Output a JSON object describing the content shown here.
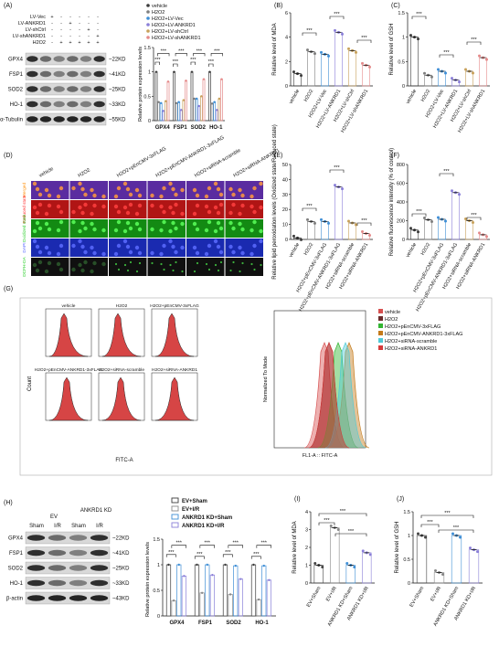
{
  "panels": {
    "A": {
      "letter": "(A)",
      "conditions": [
        "LV-Vec",
        "LV-ANKRD1",
        "LV-shCtrl",
        "LV-shANKRD1",
        "H2O2"
      ],
      "signs": [
        [
          "+",
          "-",
          "-",
          "-",
          "-",
          "-"
        ],
        [
          "-",
          "-",
          "+",
          "-",
          "-",
          "-"
        ],
        [
          "-",
          "-",
          "-",
          "-",
          "+",
          "-"
        ],
        [
          "-",
          "-",
          "-",
          "-",
          "-",
          "+"
        ],
        [
          "-",
          "+",
          "+",
          "+",
          "+",
          "+"
        ]
      ],
      "blot_labels": [
        "GPX4",
        "FSP1",
        "SOD2",
        "HO-1",
        "α-Tubulin"
      ],
      "kd_labels": [
        "~22KD",
        "~41KD",
        "~25KD",
        "~33KD",
        "~55KD"
      ],
      "legend": [
        "vehicle",
        "H2O2",
        "H2O2+LV-Vec",
        "H2O2+LV-ANKRD1",
        "H2O2+LV-shCtrl",
        "H2O2+LV-shANKRD1"
      ],
      "ylabel": "Relative protein expression levels",
      "categories": [
        "GPX4",
        "FSP1",
        "SOD2",
        "HO-1"
      ]
    },
    "B": {
      "letter": "(B)",
      "ylabel": "Relative level of MDA",
      "xlabels": [
        "vehicle",
        "H2O2",
        "H2O2+LV-Vec",
        "H2O2+LV-ANKRD1",
        "H2O2+LV-shCtrl",
        "H2O2+LV-shANKRD1"
      ]
    },
    "C": {
      "letter": "(C)",
      "ylabel": "Relative level of GSH",
      "xlabels": [
        "vehicle",
        "H2O2",
        "H2O2+LV-Vec",
        "H2O2+LV-ANKRD1",
        "H2O2+LV-shCtrl",
        "H2O2+LV-shANKRD1"
      ]
    },
    "D": {
      "letter": "(D)",
      "cols": [
        "vehicle",
        "H2O2",
        "H2O2+pEnCMV-3xFLAG",
        "H2O2+pEnCMV-ANKRD1-3xFLAG",
        "H2O2+siRNA-scramble",
        "H2O2+siRNA-ANKRD1"
      ],
      "rows": [
        "Merged",
        "Reduced state",
        "Oxidized state",
        "DAPI",
        "DCFH-DA"
      ]
    },
    "E": {
      "letter": "(E)",
      "ylabel": "Relative lipid peroxidation levels (Oxidized state/Reduced state)",
      "xlabels": [
        "vehicle",
        "H2O2",
        "H2O2+pEnCMV-3xFLAG",
        "H2O2+pEnCMV-ANKRD1-3xFLAG",
        "H2O2+siRNA-scramble",
        "H2O2+siRNA-ANKRD1"
      ]
    },
    "F": {
      "letter": "(F)",
      "ylabel": "Relative fluorescence intensity (% of control)",
      "xlabels": [
        "vehicle",
        "H2O2",
        "H2O2+pEnCMV-3xFLAG",
        "H2O2+pEnCMV-ANKRD1-3xFLAG",
        "H2O2+siRNA-scramble",
        "H2O2+siRNA-ANKRD1"
      ]
    },
    "G": {
      "letter": "(G)",
      "hist_titles": [
        "vehicle",
        "H2O2",
        "H2O2+pEnCMV-3xFLAG",
        "H2O2+pEnCMV-ANKRD1-3xFLAG",
        "H2O2+siRNA-scramble",
        "H2O2+siRNA-ANKRD1"
      ],
      "ylabel": "Count",
      "xlabel": "FITC-A",
      "overlay_ylabel": "Normalized To Mode",
      "overlay_xlabel": "FL1-A :: FITC-A",
      "legend": [
        "vehicle",
        "H2O2",
        "H2O2+pEnCMV-3xFLAG",
        "H2O2+pEnCMV-ANKRD1-3xFLAG",
        "H2O2+siRNA-scramble",
        "H2O2+siRNA-ANKRD1"
      ]
    },
    "H": {
      "letter": "(H)",
      "groups": [
        "EV",
        "ANKRD1 KD"
      ],
      "sub": [
        "Sham",
        "I/R",
        "Sham",
        "I/R"
      ],
      "blot_labels": [
        "GPX4",
        "FSP1",
        "SOD2",
        "HO-1",
        "β-actin"
      ],
      "kd_labels": [
        "~22KD",
        "~41KD",
        "~25KD",
        "~33KD",
        "~43KD"
      ],
      "legend": [
        "EV+Sham",
        "EV+I/R",
        "ANKRD1 KD+Sham",
        "ANKRD1 KD+I/R"
      ],
      "ylabel": "Relative protein expression levels",
      "categories": [
        "GPX4",
        "FSP1",
        "SOD2",
        "HO-1"
      ]
    },
    "I": {
      "letter": "(I)",
      "ylabel": "Relative level of MDA",
      "xlabels": [
        "EV+Sham",
        "EV+I/R",
        "ANKRD1 KD+Sham",
        "ANKRD1 KD+I/R"
      ]
    },
    "J": {
      "letter": "(J)",
      "ylabel": "Relative level of GSH",
      "xlabels": [
        "EV+Sham",
        "EV+I/R",
        "ANKRD1 KD+Sham",
        "ANKRD1 KD+I/R"
      ]
    },
    "sig": "***"
  },
  "colors": {
    "c_vehicle": "#3b3b3b",
    "c_h2o2": "#7f7f7f",
    "c_vec": "#3f8fd6",
    "c_ank": "#8a7fd8",
    "c_shctrl": "#c8a15a",
    "c_shank": "#e58a8a"
  },
  "chart_data": [
    {
      "panel": "A",
      "type": "bar",
      "categories": [
        "GPX4",
        "FSP1",
        "SOD2",
        "HO-1"
      ],
      "ylim": [
        0,
        1.5
      ],
      "series": [
        {
          "name": "vehicle",
          "values": [
            1.0,
            1.0,
            1.0,
            1.0
          ]
        },
        {
          "name": "H2O2",
          "values": [
            0.38,
            0.36,
            0.45,
            0.35
          ]
        },
        {
          "name": "H2O2+LV-Vec",
          "values": [
            0.36,
            0.38,
            0.45,
            0.38
          ]
        },
        {
          "name": "H2O2+LV-ANKRD1",
          "values": [
            0.2,
            0.22,
            0.3,
            0.22
          ]
        },
        {
          "name": "H2O2+LV-shCtrl",
          "values": [
            0.4,
            0.42,
            0.5,
            0.45
          ]
        },
        {
          "name": "H2O2+LV-shANKRD1",
          "values": [
            0.8,
            0.82,
            0.85,
            0.85
          ]
        }
      ]
    },
    {
      "panel": "B",
      "type": "bar",
      "ylim": [
        0,
        6
      ],
      "yticks": [
        0,
        2,
        4,
        6
      ],
      "categories": [
        "vehicle",
        "H2O2",
        "H2O2+LV-Vec",
        "H2O2+LV-ANKRD1",
        "H2O2+LV-shCtrl",
        "H2O2+LV-shANKRD1"
      ],
      "values": [
        1.0,
        2.8,
        2.6,
        4.4,
        2.9,
        1.7
      ]
    },
    {
      "panel": "C",
      "type": "bar",
      "ylim": [
        0,
        1.5
      ],
      "yticks": [
        0,
        0.5,
        1.0,
        1.5
      ],
      "categories": [
        "vehicle",
        "H2O2",
        "H2O2+LV-Vec",
        "H2O2+LV-ANKRD1",
        "H2O2+LV-shCtrl",
        "H2O2+LV-shANKRD1"
      ],
      "values": [
        1.0,
        0.22,
        0.3,
        0.12,
        0.3,
        0.58
      ]
    },
    {
      "panel": "E",
      "type": "bar",
      "ylim": [
        0,
        50
      ],
      "yticks": [
        0,
        10,
        20,
        30,
        40,
        50
      ],
      "categories": [
        "vehicle",
        "H2O2",
        "H2O2+pEnCMV-3xFLAG",
        "H2O2+pEnCMV-ANKRD1-3xFLAG",
        "H2O2+siRNA-scramble",
        "H2O2+siRNA-ANKRD1"
      ],
      "values": [
        1,
        12,
        12,
        35,
        11,
        4
      ]
    },
    {
      "panel": "F",
      "type": "bar",
      "ylim": [
        0,
        800
      ],
      "yticks": [
        0,
        200,
        400,
        600,
        800
      ],
      "categories": [
        "vehicle",
        "H2O2",
        "H2O2+pEnCMV-3xFLAG",
        "H2O2+pEnCMV-ANKRD1-3xFLAG",
        "H2O2+siRNA-scramble",
        "H2O2+siRNA-ANKRD1"
      ],
      "values": [
        100,
        210,
        215,
        500,
        200,
        50
      ]
    },
    {
      "panel": "H",
      "type": "bar",
      "categories": [
        "GPX4",
        "FSP1",
        "SOD2",
        "HO-1"
      ],
      "ylim": [
        0,
        1.5
      ],
      "yticks": [
        0,
        0.5,
        1.0,
        1.5
      ],
      "series": [
        {
          "name": "EV+Sham",
          "values": [
            1.0,
            1.0,
            1.0,
            1.0
          ]
        },
        {
          "name": "EV+I/R",
          "values": [
            0.3,
            0.45,
            0.42,
            0.32
          ]
        },
        {
          "name": "ANKRD1 KD+Sham",
          "values": [
            1.0,
            1.0,
            0.98,
            0.98
          ]
        },
        {
          "name": "ANKRD1 KD+I/R",
          "values": [
            0.78,
            0.8,
            0.72,
            0.7
          ]
        }
      ]
    },
    {
      "panel": "I",
      "type": "bar",
      "ylim": [
        0,
        4
      ],
      "yticks": [
        0,
        1,
        2,
        3,
        4
      ],
      "categories": [
        "EV+Sham",
        "EV+I/R",
        "ANKRD1 KD+Sham",
        "ANKRD1 KD+I/R"
      ],
      "values": [
        1.0,
        3.1,
        1.0,
        1.7
      ]
    },
    {
      "panel": "J",
      "type": "bar",
      "ylim": [
        0,
        1.5
      ],
      "yticks": [
        0,
        0.5,
        1.0,
        1.5
      ],
      "categories": [
        "EV+Sham",
        "EV+I/R",
        "ANKRD1 KD+Sham",
        "ANKRD1 KD+I/R"
      ],
      "values": [
        1.0,
        0.22,
        1.0,
        0.7
      ]
    }
  ]
}
